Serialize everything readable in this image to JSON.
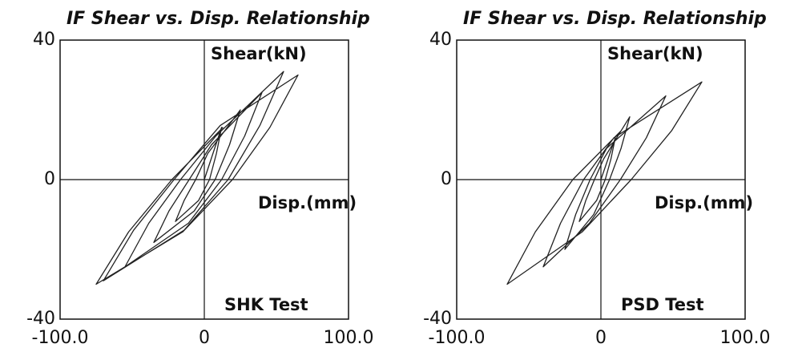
{
  "chart_data": [
    {
      "type": "line",
      "title": "IF Shear vs. Disp. Relationship",
      "y_label": "Shear(kN)",
      "x_label": "Disp.(mm)",
      "annotation": "SHK Test",
      "color": "#222222",
      "xlim": [
        -100,
        100
      ],
      "ylim": [
        -40,
        40
      ],
      "xticks": [
        {
          "value": -100,
          "label": "-100.0"
        },
        0,
        {
          "value": 100,
          "label": "100.0"
        }
      ],
      "yticks": [
        40,
        0,
        -40
      ],
      "x": [
        0,
        12,
        8.4,
        3.6,
        -4,
        -20,
        -14,
        -6,
        2.4,
        25,
        17.5,
        7.5,
        -7,
        -35,
        -24.5,
        -10.5,
        5,
        40,
        28,
        12,
        -11,
        -55,
        -38.5,
        -16.5,
        8,
        55,
        38.5,
        16.5,
        -14,
        -70,
        -49,
        -21,
        11,
        65,
        45.5,
        19.5,
        -15,
        -75,
        -52.5,
        -22.5,
        13
      ],
      "values": [
        0,
        15,
        7.5,
        0,
        -6,
        -12,
        -6,
        0,
        7.5,
        20,
        10,
        0,
        -9,
        -18,
        -9,
        0,
        10,
        25,
        12.5,
        0,
        -12.5,
        -25,
        -12.5,
        0,
        12.5,
        31,
        15.5,
        0,
        -14.5,
        -29,
        -14.5,
        0,
        15.5,
        30,
        15,
        0,
        -15,
        -30,
        -15,
        0,
        15
      ]
    },
    {
      "type": "line",
      "title": "IF Shear vs. Disp. Relationship",
      "y_label": "Shear(kN)",
      "x_label": "Disp.(mm)",
      "annotation": "PSD Test",
      "color": "#222222",
      "xlim": [
        -100,
        100
      ],
      "ylim": [
        -40,
        40
      ],
      "xticks": [
        {
          "value": -100,
          "label": "-100.0"
        },
        0,
        {
          "value": 100,
          "label": "100.0"
        }
      ],
      "yticks": [
        40,
        0,
        -40
      ],
      "x": [
        0,
        10,
        7,
        3,
        -3,
        -15,
        -10.5,
        -4.5,
        2,
        20,
        14,
        6,
        -5,
        -25,
        -17.5,
        -7.5,
        4,
        45,
        31.5,
        13.5,
        -8,
        -40,
        -28,
        -12,
        9,
        70,
        49,
        21,
        -13,
        -65,
        -45.5,
        -19.5,
        14
      ],
      "values": [
        0,
        12,
        6,
        0,
        -6,
        -12,
        -6,
        0,
        6,
        18,
        9,
        0,
        -10,
        -20,
        -10,
        0,
        9,
        24,
        12,
        0,
        -12.5,
        -25,
        -12.5,
        0,
        12,
        28,
        14,
        0,
        -15,
        -30,
        -15,
        0,
        14
      ]
    }
  ]
}
